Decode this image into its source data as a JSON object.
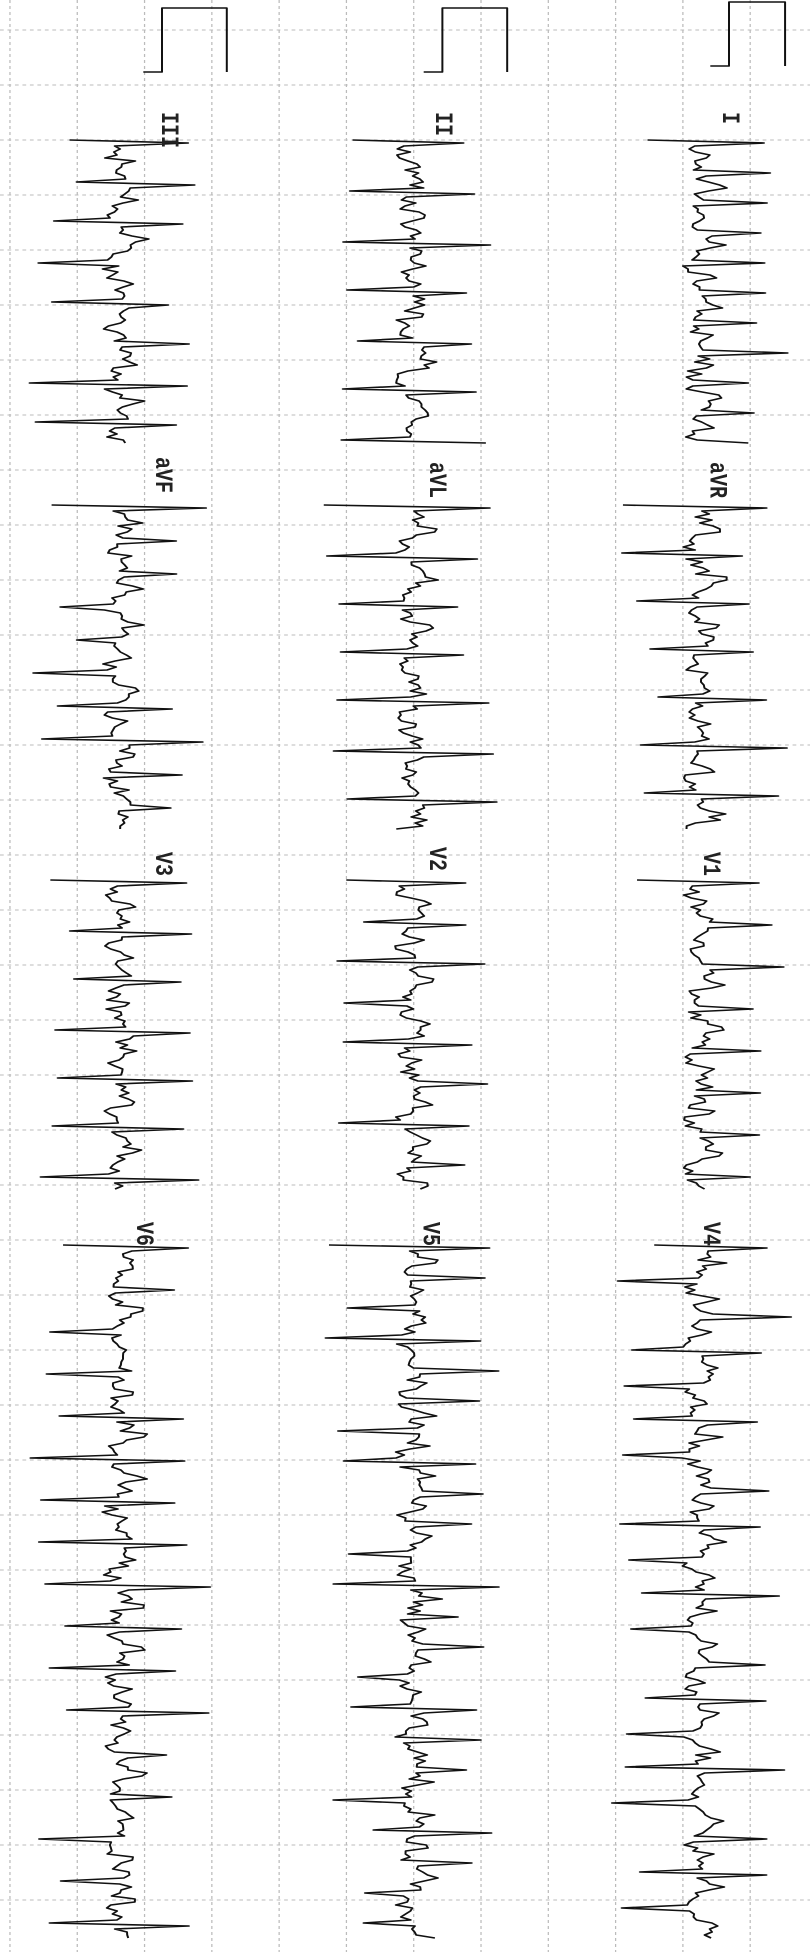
{
  "leads": [
    [
      "I",
      "aVR",
      "V1",
      "V4"
    ],
    [
      "II",
      "aVL",
      "V2",
      "V5"
    ],
    [
      "III",
      "aVF",
      "V3",
      "V6"
    ]
  ]
}
